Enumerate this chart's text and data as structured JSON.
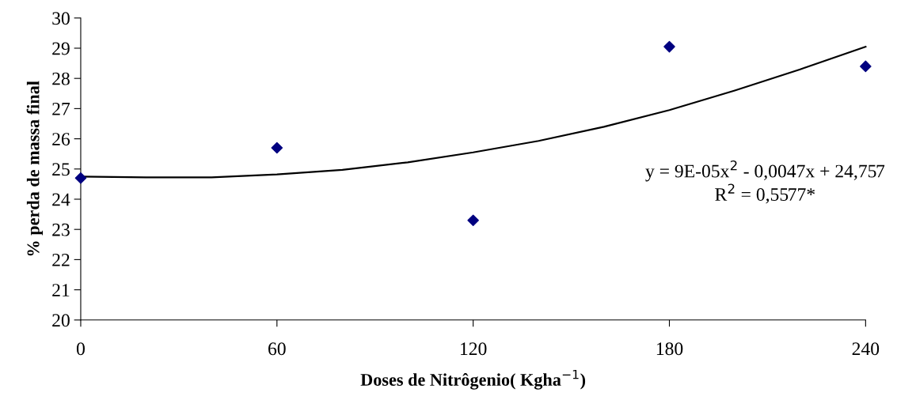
{
  "chart_data": {
    "type": "scatter",
    "xlabel": "Doses de Nitrôgenio( Kgha$^{−1}$)",
    "ylabel": "% perda de massa final",
    "x": [
      0,
      60,
      120,
      180,
      240
    ],
    "series": [
      {
        "color": "#000080",
        "marker": "diamond",
        "values": [
          24.7,
          25.7,
          23.3,
          29.05,
          28.4
        ]
      },
      {
        "type": "line",
        "color": "#000000",
        "marker": "none",
        "line_style": "solid",
        "x": [
          0,
          20,
          40,
          60,
          80,
          100,
          120,
          140,
          160,
          180,
          200,
          220,
          240
        ],
        "values": [
          24.75,
          24.72,
          24.72,
          24.82,
          24.97,
          25.22,
          25.55,
          25.93,
          26.4,
          26.95,
          27.6,
          28.3,
          29.05
        ]
      }
    ],
    "xlim": [
      0,
      240
    ],
    "xticks": [
      0,
      60,
      120,
      180,
      240
    ],
    "ylim": [
      20,
      30
    ],
    "yticks": [
      20,
      21,
      22,
      23,
      24,
      25,
      26,
      27,
      28,
      29,
      30
    ],
    "grid": false,
    "legend": false,
    "annotations": [
      "y = 9E-05x$^{2}$ - 0,0047x + 24,757\nR$^{2}$ = 0,5577*"
    ]
  }
}
